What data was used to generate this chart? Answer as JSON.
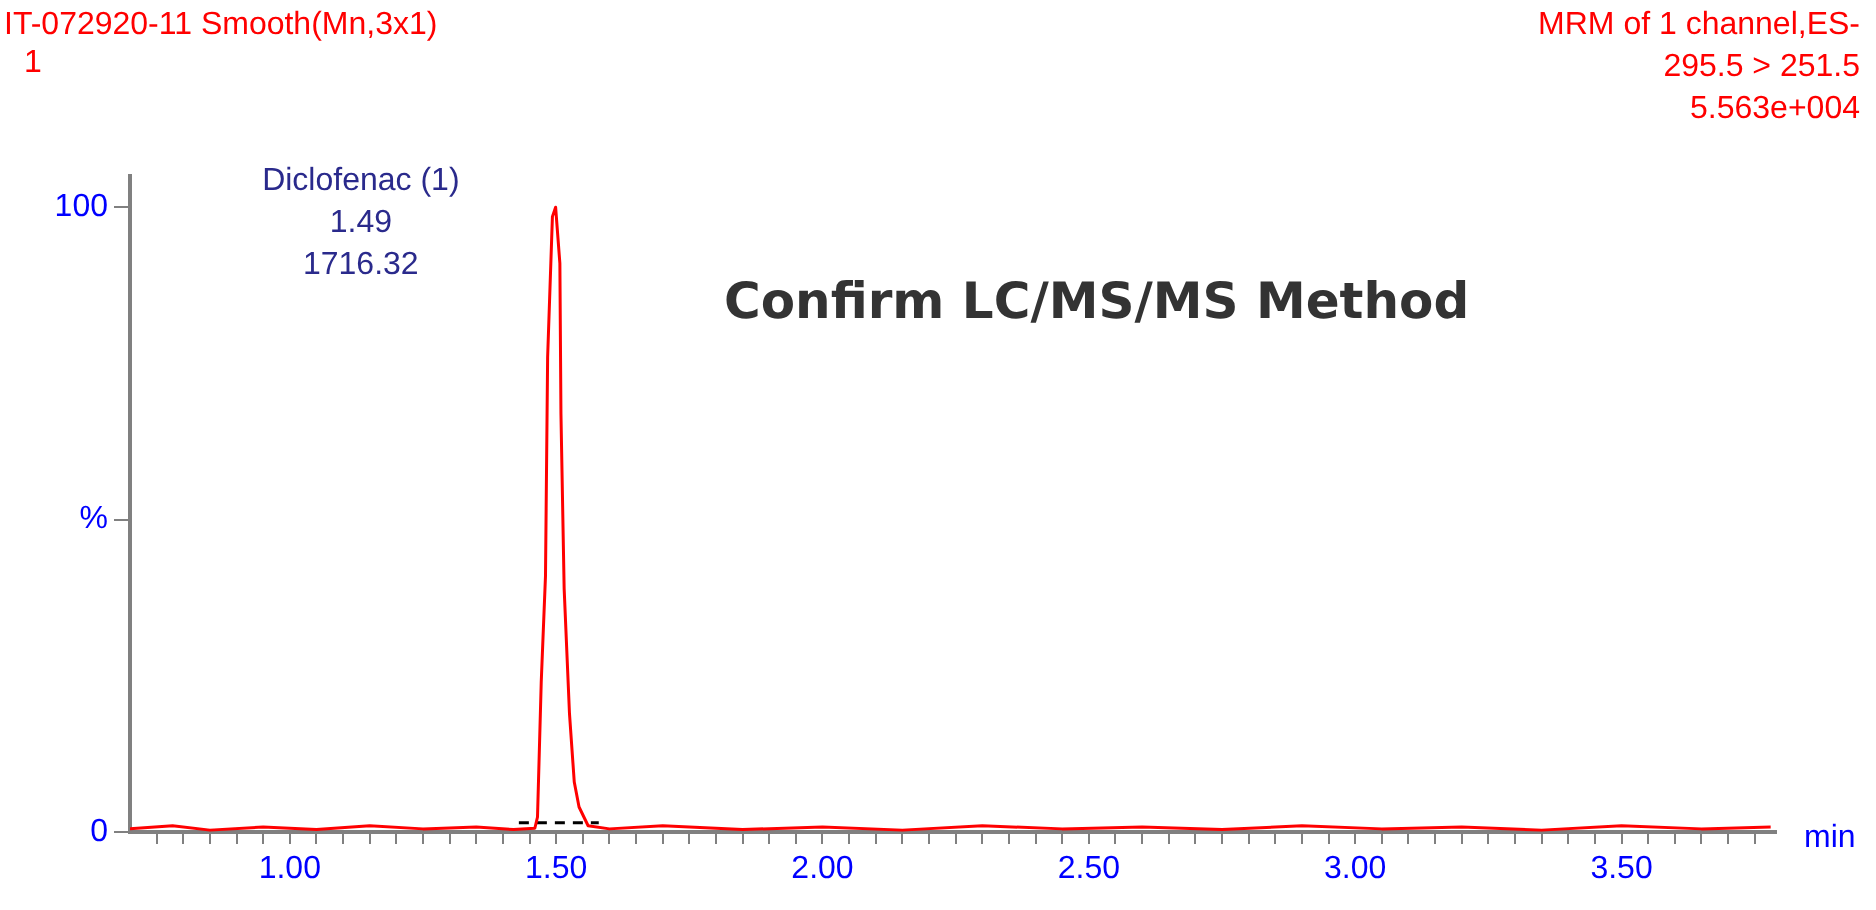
{
  "chart_data": {
    "type": "line",
    "title": "IT-072920-11 Smooth(Mn,3x1)",
    "subtitle": "1",
    "xlabel": "min",
    "annotations": [
      "MRM of 1 channel,ES-",
      "295.5 > 251.5",
      "5.563e+004",
      "Confirm LC/MS/MS Method",
      {
        "text": "Diclofenac (1)\n1.49\n1716.32",
        "x": 1.49,
        "y": 100
      }
    ],
    "xlim": [
      0.7,
      3.79
    ],
    "ylim": [
      0,
      105
    ],
    "xticks": [
      {
        "value": 0.75,
        "label": null
      },
      {
        "value": 0.8,
        "label": null
      },
      {
        "value": 0.85,
        "label": null
      },
      {
        "value": 0.9,
        "label": null
      },
      {
        "value": 0.95,
        "label": null
      },
      {
        "value": 1,
        "label": "1.00"
      },
      {
        "value": 1.05,
        "label": null
      },
      {
        "value": 1.1,
        "label": null
      },
      {
        "value": 1.15,
        "label": null
      },
      {
        "value": 1.2,
        "label": null
      },
      {
        "value": 1.25,
        "label": null
      },
      {
        "value": 1.3,
        "label": null
      },
      {
        "value": 1.35,
        "label": null
      },
      {
        "value": 1.4,
        "label": null
      },
      {
        "value": 1.45,
        "label": null
      },
      {
        "value": 1.5,
        "label": "1.50"
      },
      {
        "value": 1.55,
        "label": null
      },
      {
        "value": 1.6,
        "label": null
      },
      {
        "value": 1.65,
        "label": null
      },
      {
        "value": 1.7,
        "label": null
      },
      {
        "value": 1.75,
        "label": null
      },
      {
        "value": 1.8,
        "label": null
      },
      {
        "value": 1.85,
        "label": null
      },
      {
        "value": 1.9,
        "label": null
      },
      {
        "value": 1.95,
        "label": null
      },
      {
        "value": 2,
        "label": "2.00"
      },
      {
        "value": 2.05,
        "label": null
      },
      {
        "value": 2.1,
        "label": null
      },
      {
        "value": 2.15,
        "label": null
      },
      {
        "value": 2.2,
        "label": null
      },
      {
        "value": 2.25,
        "label": null
      },
      {
        "value": 2.3,
        "label": null
      },
      {
        "value": 2.35,
        "label": null
      },
      {
        "value": 2.4,
        "label": null
      },
      {
        "value": 2.45,
        "label": null
      },
      {
        "value": 2.5,
        "label": "2.50"
      },
      {
        "value": 2.55,
        "label": null
      },
      {
        "value": 2.6,
        "label": null
      },
      {
        "value": 2.65,
        "label": null
      },
      {
        "value": 2.7,
        "label": null
      },
      {
        "value": 2.75,
        "label": null
      },
      {
        "value": 2.8,
        "label": null
      },
      {
        "value": 2.85,
        "label": null
      },
      {
        "value": 2.9,
        "label": null
      },
      {
        "value": 2.95,
        "label": null
      },
      {
        "value": 3,
        "label": "3.00"
      },
      {
        "value": 3.05,
        "label": null
      },
      {
        "value": 3.1,
        "label": null
      },
      {
        "value": 3.15,
        "label": null
      },
      {
        "value": 3.2,
        "label": null
      },
      {
        "value": 3.25,
        "label": null
      },
      {
        "value": 3.3,
        "label": null
      },
      {
        "value": 3.35,
        "label": null
      },
      {
        "value": 3.4,
        "label": null
      },
      {
        "value": 3.45,
        "label": null
      },
      {
        "value": 3.5,
        "label": "3.50"
      },
      {
        "value": 3.55,
        "label": null
      },
      {
        "value": 3.6,
        "label": null
      },
      {
        "value": 3.65,
        "label": null
      },
      {
        "value": 3.7,
        "label": null
      },
      {
        "value": 3.75,
        "label": null
      }
    ],
    "yticks": [
      0,
      {
        "value": 50,
        "label": "%"
      },
      100
    ],
    "grid": false,
    "legend": false,
    "marker": "none",
    "series": [
      {
        "color": "#ff0000",
        "line_style": "solid",
        "x": [
          0.7,
          0.78,
          0.85,
          0.95,
          1.05,
          1.15,
          1.25,
          1.35,
          1.42,
          1.46,
          1.465,
          1.472,
          1.48,
          1.484,
          1.493,
          1.499,
          1.507,
          1.509,
          1.515,
          1.525,
          1.534,
          1.543,
          1.56,
          1.6,
          1.7,
          1.85,
          2.0,
          2.15,
          2.3,
          2.45,
          2.6,
          2.75,
          2.9,
          3.05,
          3.2,
          3.35,
          3.5,
          3.65,
          3.78
        ],
        "values": [
          0.5,
          1,
          0.3,
          0.8,
          0.4,
          1,
          0.5,
          0.8,
          0.4,
          0.6,
          2.4,
          24,
          41,
          76,
          98.5,
          100,
          91,
          67,
          39,
          19,
          8,
          4,
          1,
          0.5,
          1,
          0.4,
          0.8,
          0.3,
          1,
          0.5,
          0.8,
          0.4,
          1,
          0.5,
          0.8,
          0.3,
          1,
          0.5,
          0.8
        ]
      },
      {
        "color": "#000000",
        "line_style": "dashed",
        "x": [
          1.43,
          1.58
        ],
        "values": [
          1.5,
          1.5
        ]
      }
    ]
  }
}
